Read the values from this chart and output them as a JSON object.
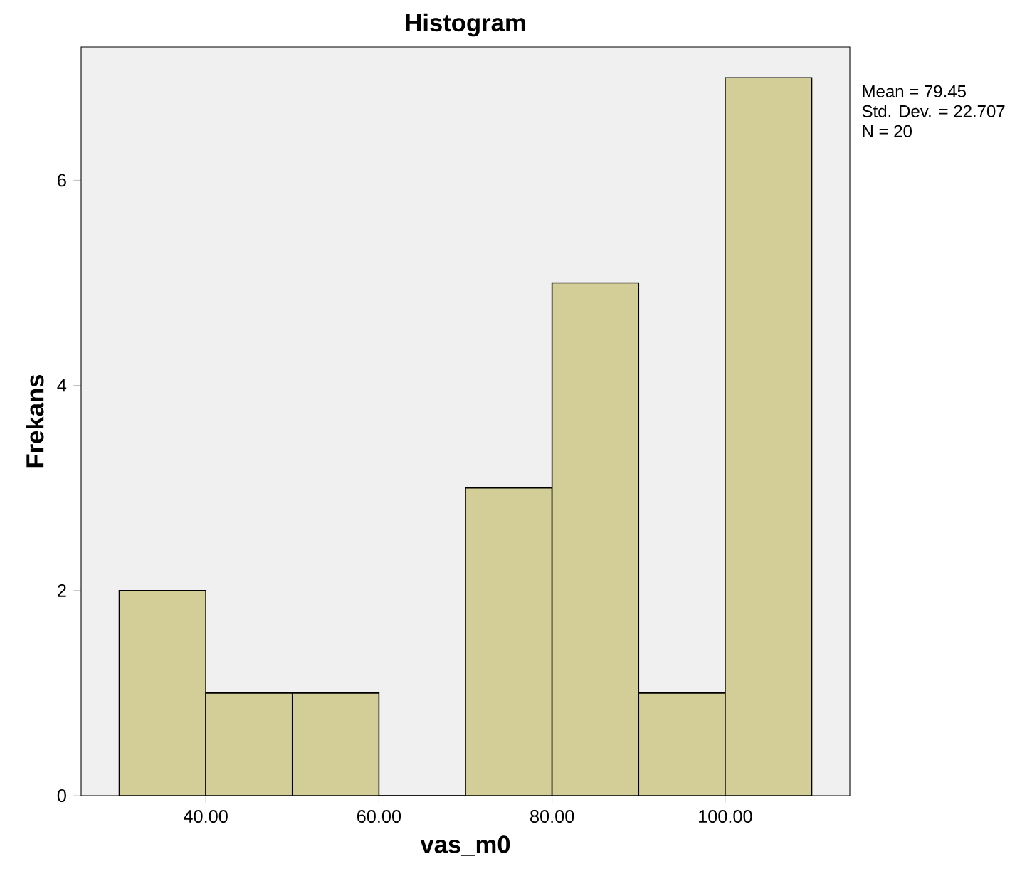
{
  "chart_data": {
    "type": "histogram",
    "title": "Histogram",
    "xlabel": "vas_m0",
    "ylabel": "Frekans",
    "bins": [
      30,
      40,
      50,
      60,
      70,
      80,
      90,
      100,
      110
    ],
    "values": [
      2,
      1,
      1,
      0,
      3,
      5,
      1,
      7
    ],
    "color": "#d3ce97",
    "xlim": [
      25.6,
      114.4
    ],
    "ylim": [
      0,
      7.3
    ],
    "xticks": [
      {
        "value": 40,
        "label": "40.00"
      },
      {
        "value": 60,
        "label": "60.00"
      },
      {
        "value": 80,
        "label": "80.00"
      },
      {
        "value": 100,
        "label": "100.00"
      }
    ],
    "yticks": [
      0,
      2,
      4,
      6
    ],
    "annotations": [
      "Mean = 79.45",
      "Std. Dev. = 22.707",
      "N = 20"
    ]
  }
}
